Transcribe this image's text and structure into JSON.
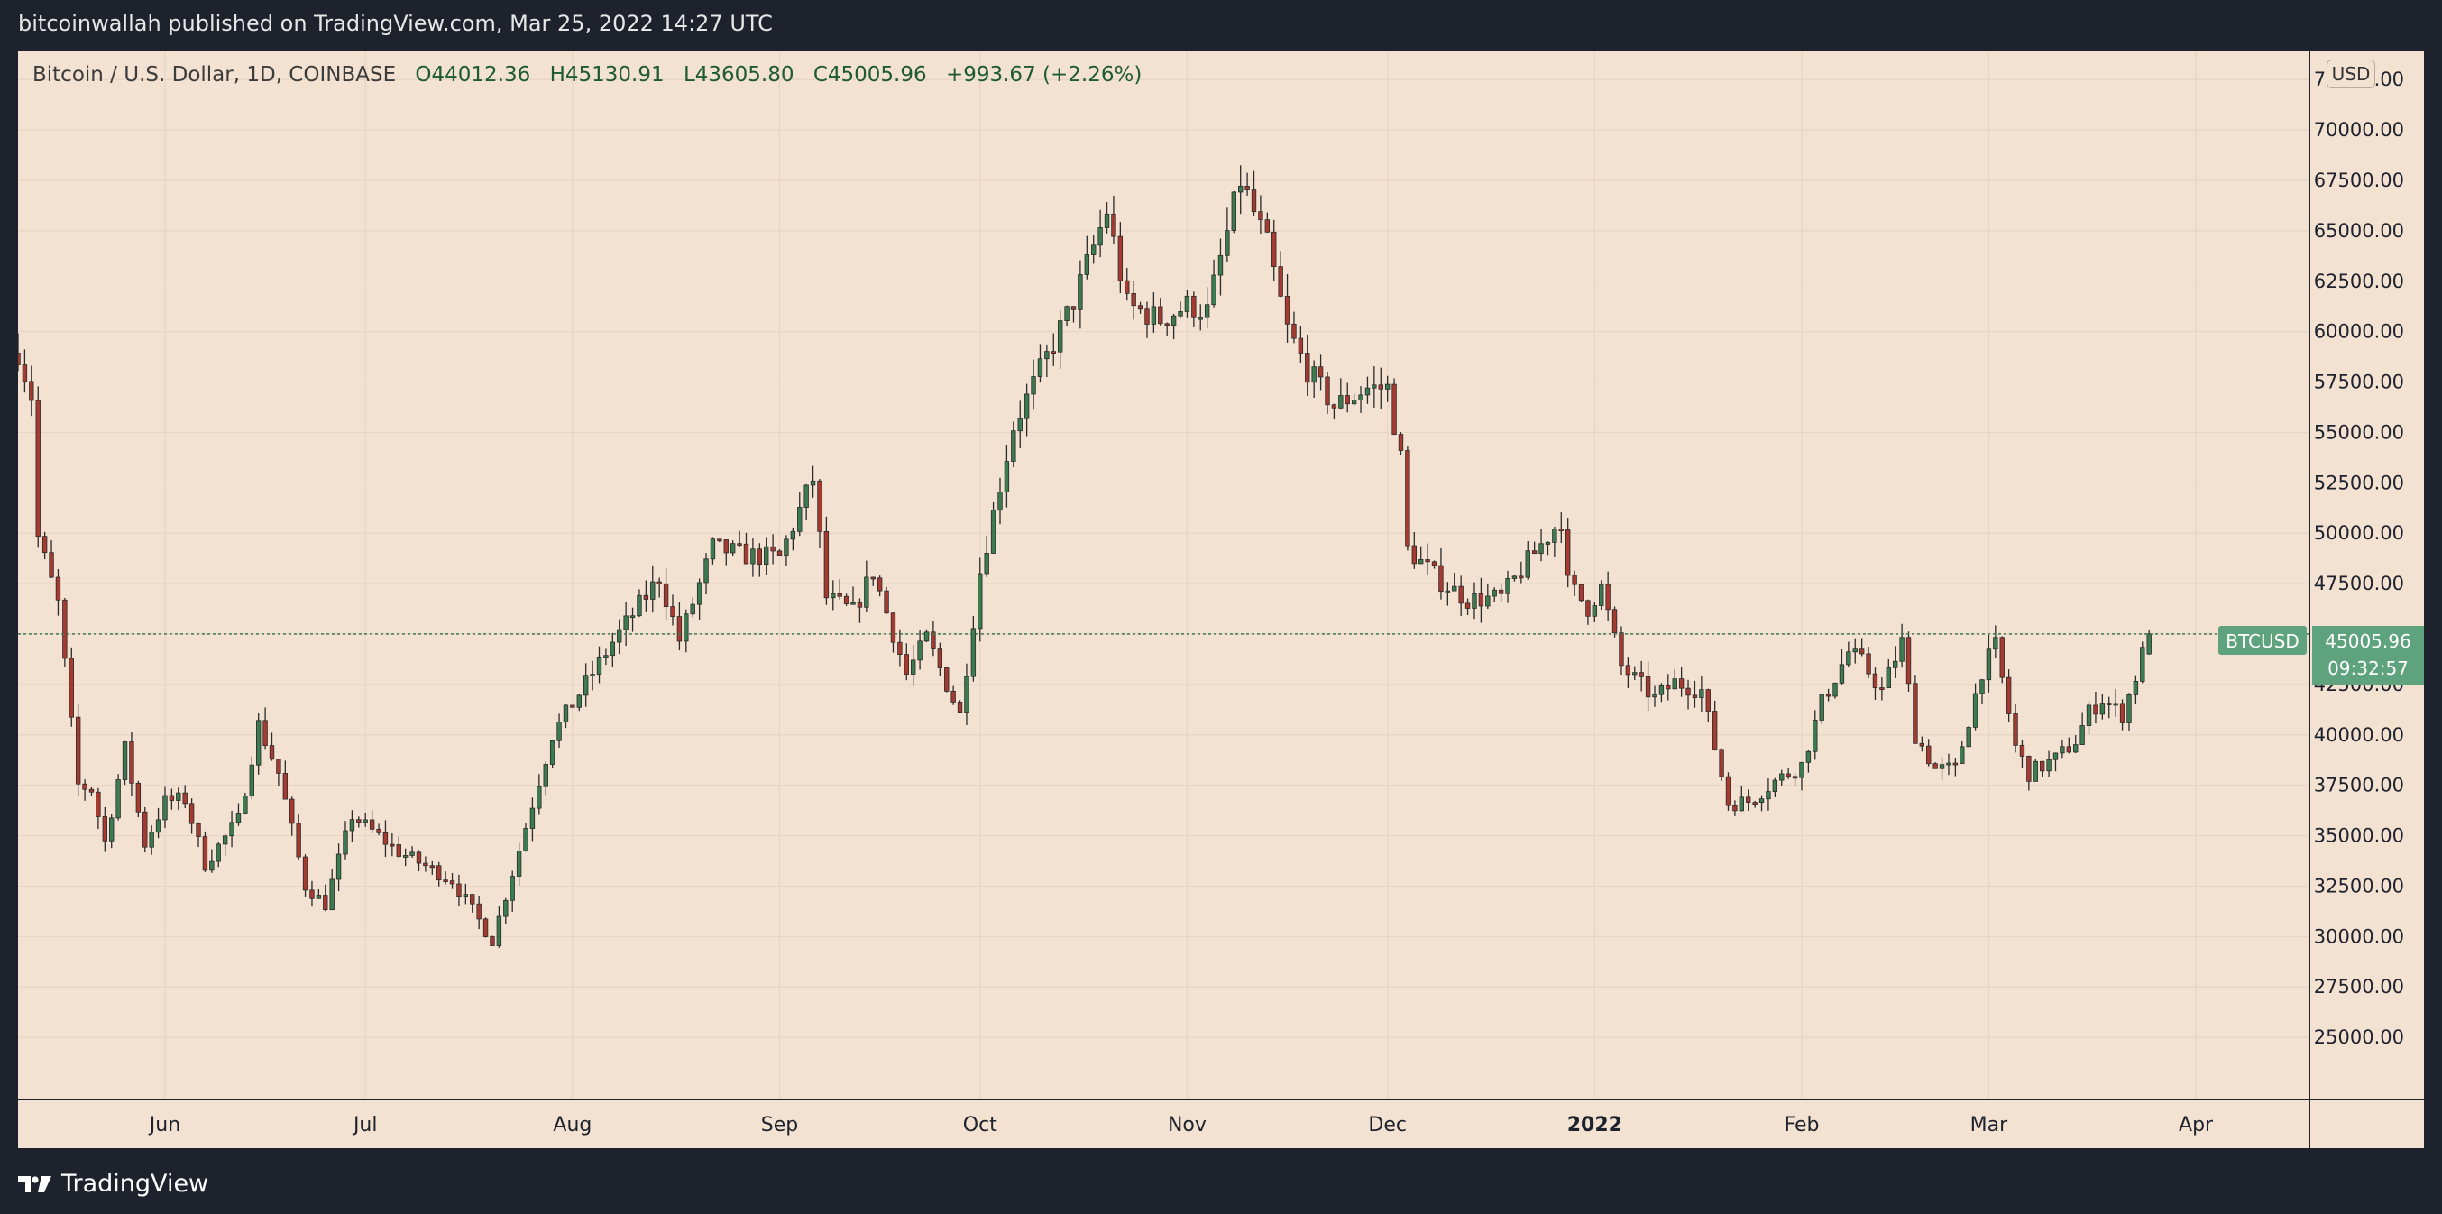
{
  "header": {
    "publisher_line": "bitcoinwallah published on TradingView.com, Mar 25, 2022 14:27 UTC"
  },
  "legend": {
    "symbol": "Bitcoin / U.S. Dollar, 1D, COINBASE",
    "open": "O44012.36",
    "high": "H45130.91",
    "low": "L43605.80",
    "close": "C45005.96",
    "change": "+993.67 (+2.26%)"
  },
  "currency_button": "USD",
  "price_tag": {
    "label": "BTCUSD",
    "price": "45005.96",
    "countdown": "09:32:57"
  },
  "footer": {
    "brand": "TradingView"
  },
  "colors": {
    "background": "#f3e2d2",
    "up": "#3c7a4f",
    "down": "#a63a31",
    "tag": "#5ea37d",
    "frame": "#1e222d"
  },
  "icons": {
    "brand": "tradingview-logo-icon"
  },
  "chart_data": {
    "type": "candlestick",
    "symbol": "BTCUSD",
    "ylim": [
      22500,
      72600
    ],
    "y_ticks": [
      25000,
      27500,
      30000,
      32500,
      35000,
      37500,
      40000,
      42500,
      45000,
      47500,
      50000,
      52500,
      55000,
      57500,
      60000,
      62500,
      65000,
      67500,
      70000,
      72500
    ],
    "y_tick_labels": [
      "25000.00",
      "27500.00",
      "30000.00",
      "32500.00",
      "35000.00",
      "37500.00",
      "40000.00",
      "42500.00",
      "45000.00",
      "47500.00",
      "50000.00",
      "52500.00",
      "55000.00",
      "57500.00",
      "60000.00",
      "62500.00",
      "65000.00",
      "67500.00",
      "70000.00",
      "72500.00"
    ],
    "x_start": "2021-05-10",
    "x_end": "2022-04-18",
    "x_ticks": [
      {
        "date": "2021-06-01",
        "label": "Jun",
        "bold": false
      },
      {
        "date": "2021-07-01",
        "label": "Jul",
        "bold": false
      },
      {
        "date": "2021-08-01",
        "label": "Aug",
        "bold": false
      },
      {
        "date": "2021-09-01",
        "label": "Sep",
        "bold": false
      },
      {
        "date": "2021-10-01",
        "label": "Oct",
        "bold": false
      },
      {
        "date": "2021-11-01",
        "label": "Nov",
        "bold": false
      },
      {
        "date": "2021-12-01",
        "label": "Dec",
        "bold": false
      },
      {
        "date": "2022-01-01",
        "label": "2022",
        "bold": true
      },
      {
        "date": "2022-02-01",
        "label": "Feb",
        "bold": false
      },
      {
        "date": "2022-03-01",
        "label": "Mar",
        "bold": false
      },
      {
        "date": "2022-04-01",
        "label": "Apr",
        "bold": false
      }
    ],
    "last_price": 45005.96,
    "anchors": [
      [
        "2021-05-10",
        59000
      ],
      [
        "2021-05-12",
        56800
      ],
      [
        "2021-05-13",
        49800
      ],
      [
        "2021-05-16",
        46500
      ],
      [
        "2021-05-19",
        37500
      ],
      [
        "2021-05-21",
        37300
      ],
      [
        "2021-05-23",
        34700
      ],
      [
        "2021-05-26",
        39300
      ],
      [
        "2021-05-29",
        34600
      ],
      [
        "2021-06-01",
        36700
      ],
      [
        "2021-06-04",
        36800
      ],
      [
        "2021-06-07",
        33600
      ],
      [
        "2021-06-12",
        35800
      ],
      [
        "2021-06-15",
        40500
      ],
      [
        "2021-06-18",
        38100
      ],
      [
        "2021-06-22",
        32500
      ],
      [
        "2021-06-25",
        31600
      ],
      [
        "2021-06-29",
        36000
      ],
      [
        "2021-07-06",
        34200
      ],
      [
        "2021-07-14",
        32800
      ],
      [
        "2021-07-20",
        29800
      ],
      [
        "2021-07-24",
        34300
      ],
      [
        "2021-07-29",
        40000
      ],
      [
        "2021-08-07",
        44600
      ],
      [
        "2021-08-14",
        47800
      ],
      [
        "2021-08-17",
        44700
      ],
      [
        "2021-08-22",
        49300
      ],
      [
        "2021-08-27",
        48900
      ],
      [
        "2021-09-01",
        48800
      ],
      [
        "2021-09-06",
        52700
      ],
      [
        "2021-09-08",
        46800
      ],
      [
        "2021-09-12",
        46100
      ],
      [
        "2021-09-15",
        48100
      ],
      [
        "2021-09-20",
        43000
      ],
      [
        "2021-09-23",
        44800
      ],
      [
        "2021-09-28",
        41000
      ],
      [
        "2021-10-01",
        48100
      ],
      [
        "2021-10-06",
        55300
      ],
      [
        "2021-10-15",
        61500
      ],
      [
        "2021-10-20",
        66000
      ],
      [
        "2021-10-23",
        61300
      ],
      [
        "2021-10-28",
        60600
      ],
      [
        "2021-11-01",
        61300
      ],
      [
        "2021-11-04",
        61000
      ],
      [
        "2021-11-09",
        67500
      ],
      [
        "2021-11-13",
        64300
      ],
      [
        "2021-11-16",
        60100
      ],
      [
        "2021-11-19",
        58100
      ],
      [
        "2021-11-23",
        56300
      ],
      [
        "2021-11-28",
        57200
      ],
      [
        "2021-12-01",
        57200
      ],
      [
        "2021-12-03",
        53700
      ],
      [
        "2021-12-04",
        49200
      ],
      [
        "2021-12-09",
        47600
      ],
      [
        "2021-12-13",
        46700
      ],
      [
        "2021-12-18",
        46800
      ],
      [
        "2021-12-22",
        48600
      ],
      [
        "2021-12-27",
        50700
      ],
      [
        "2021-12-28",
        47500
      ],
      [
        "2021-12-31",
        46300
      ],
      [
        "2022-01-02",
        47300
      ],
      [
        "2022-01-05",
        43400
      ],
      [
        "2022-01-10",
        41800
      ],
      [
        "2022-01-13",
        42600
      ],
      [
        "2022-01-17",
        42200
      ],
      [
        "2022-01-21",
        36600
      ],
      [
        "2022-01-24",
        36700
      ],
      [
        "2022-01-28",
        37700
      ],
      [
        "2022-02-01",
        38500
      ],
      [
        "2022-02-04",
        41600
      ],
      [
        "2022-02-08",
        44100
      ],
      [
        "2022-02-10",
        43600
      ],
      [
        "2022-02-13",
        42200
      ],
      [
        "2022-02-16",
        44600
      ],
      [
        "2022-02-18",
        40000
      ],
      [
        "2022-02-21",
        38300
      ],
      [
        "2022-02-24",
        38300
      ],
      [
        "2022-02-28",
        43200
      ],
      [
        "2022-03-02",
        44400
      ],
      [
        "2022-03-05",
        39400
      ],
      [
        "2022-03-07",
        38100
      ],
      [
        "2022-03-11",
        38800
      ],
      [
        "2022-03-14",
        39700
      ],
      [
        "2022-03-16",
        41100
      ],
      [
        "2022-03-18",
        41800
      ],
      [
        "2022-03-21",
        41000
      ],
      [
        "2022-03-23",
        42900
      ],
      [
        "2022-03-24",
        44012
      ],
      [
        "2022-03-25",
        45006
      ]
    ]
  }
}
